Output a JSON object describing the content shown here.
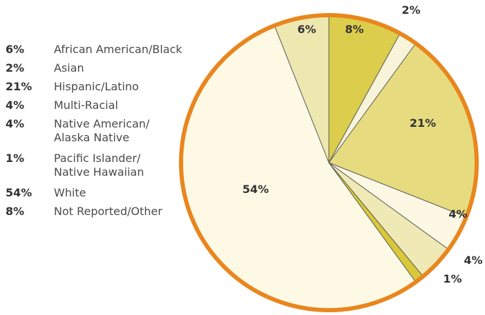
{
  "chart_data": {
    "type": "pie",
    "title": "",
    "slices": [
      {
        "label": "African American/Black",
        "label_lines": [
          "African American/Black"
        ],
        "value": 6,
        "display": "6%",
        "color": "#ede7b0"
      },
      {
        "label": "Asian",
        "label_lines": [
          "Asian"
        ],
        "value": 2,
        "display": "2%",
        "color": "#f8f4da"
      },
      {
        "label": "Hispanic/Latino",
        "label_lines": [
          "Hispanic/Latino"
        ],
        "value": 21,
        "display": "21%",
        "color": "#e6dc7f"
      },
      {
        "label": "Multi-Racial",
        "label_lines": [
          "Multi-Racial"
        ],
        "value": 4,
        "display": "4%",
        "color": "#fcf8e4"
      },
      {
        "label": "Native American/ Alaska Native",
        "label_lines": [
          "Native American/",
          "Alaska Native"
        ],
        "value": 4,
        "display": "4%",
        "color": "#efe9b6"
      },
      {
        "label": "Pacific Islander/ Native Hawaiian",
        "label_lines": [
          "Pacific Islander/",
          "Native Hawaiian"
        ],
        "value": 1,
        "display": "1%",
        "color": "#d8c83a"
      },
      {
        "label": "White",
        "label_lines": [
          "White"
        ],
        "value": 54,
        "display": "54%",
        "color": "#fdf9e4"
      },
      {
        "label": "Not Reported/Other",
        "label_lines": [
          "Not Reported/Other"
        ],
        "value": 8,
        "display": "8%",
        "color": "#dccd4c"
      }
    ],
    "border_color": "#e9861e",
    "edge_color": "#555555"
  }
}
